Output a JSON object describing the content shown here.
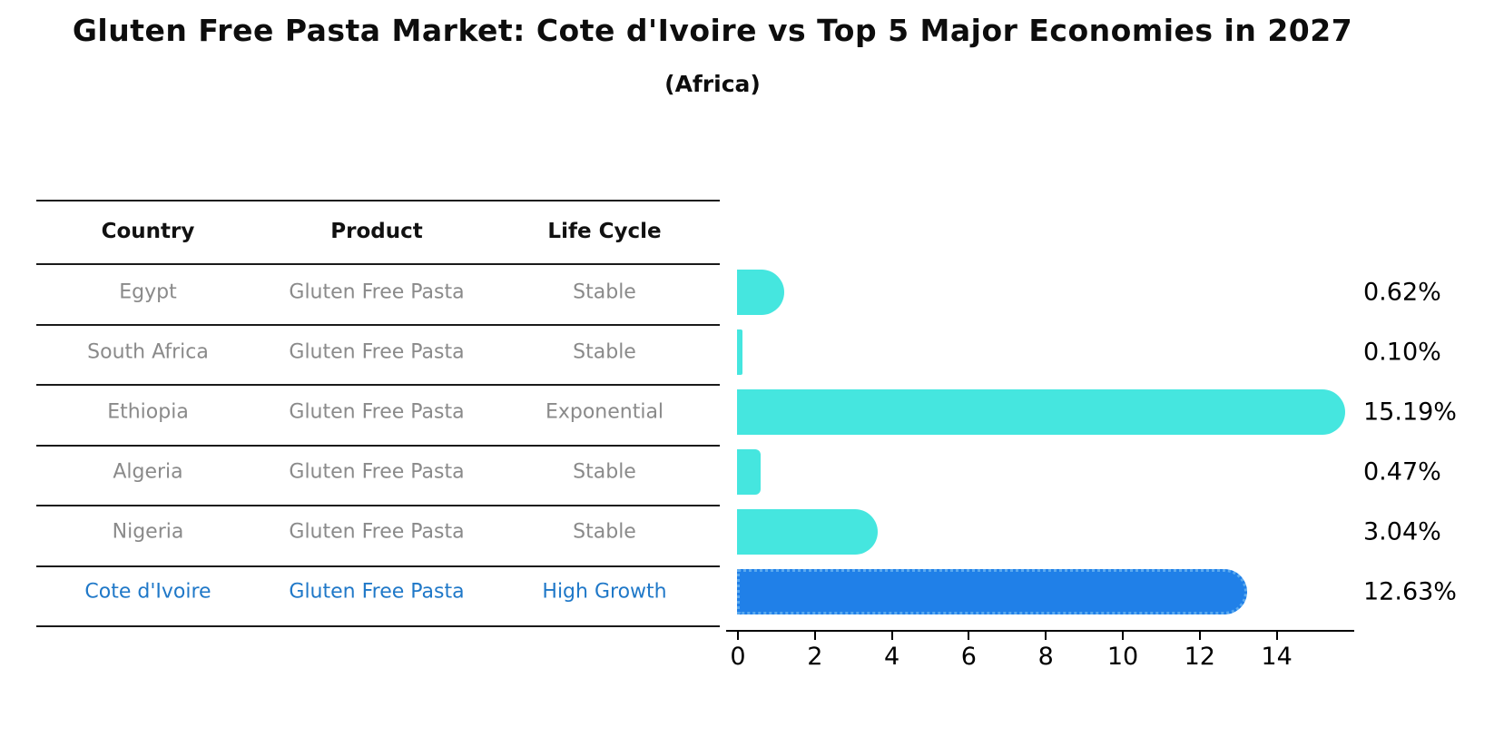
{
  "title": "Gluten Free Pasta Market: Cote d'Ivoire vs Top 5 Major Economies in 2027",
  "subtitle": "(Africa)",
  "table": {
    "headers": [
      "Country",
      "Product",
      "Life Cycle"
    ],
    "rows": [
      {
        "country": "Egypt",
        "product": "Gluten Free Pasta",
        "life_cycle": "Stable",
        "highlight": false
      },
      {
        "country": "South Africa",
        "product": "Gluten Free Pasta",
        "life_cycle": "Stable",
        "highlight": false
      },
      {
        "country": "Ethiopia",
        "product": "Gluten Free Pasta",
        "life_cycle": "Exponential",
        "highlight": false
      },
      {
        "country": "Algeria",
        "product": "Gluten Free Pasta",
        "life_cycle": "Stable",
        "highlight": false
      },
      {
        "country": "Nigeria",
        "product": "Gluten Free Pasta",
        "life_cycle": "Stable",
        "highlight": false
      },
      {
        "country": "Cote d'Ivoire",
        "product": "Gluten Free Pasta",
        "life_cycle": "High Growth",
        "highlight": true
      }
    ]
  },
  "chart_data": {
    "type": "bar",
    "orientation": "horizontal",
    "title": "Gluten Free Pasta Market: Cote d'Ivoire vs Top 5 Major Economies in 2027",
    "subtitle": "(Africa)",
    "categories": [
      "Egypt",
      "South Africa",
      "Ethiopia",
      "Algeria",
      "Nigeria",
      "Cote d'Ivoire"
    ],
    "values": [
      0.62,
      0.1,
      15.19,
      0.47,
      3.04,
      12.63
    ],
    "value_labels": [
      "0.62%",
      "0.10%",
      "15.19%",
      "0.47%",
      "3.04%",
      "12.63%"
    ],
    "x_ticks": [
      "0",
      "2",
      "4",
      "6",
      "8",
      "10",
      "12",
      "14"
    ],
    "xlim": [
      0,
      16
    ],
    "grid": false,
    "legend": "none",
    "highlight_index": 5
  },
  "colors": {
    "bar": "#45E6DF",
    "highlight_bar": "#2080E8",
    "highlight_text": "#1F78C8",
    "body_text": "#8A8A8A",
    "axis": "#000000"
  }
}
